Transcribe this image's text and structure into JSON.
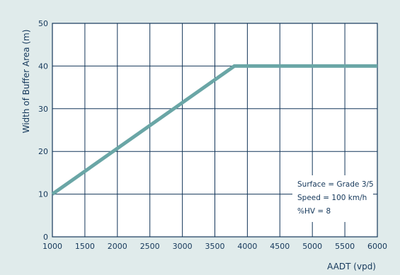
{
  "colors": {
    "background": "#e0ebeb",
    "plot_area": "#ffffff",
    "grid": "#14375a",
    "line": "#6aa6a6",
    "text": "#14375a"
  },
  "chart_data": {
    "type": "line",
    "title": "",
    "xlabel": "AADT (vpd)",
    "ylabel": "Width of Buffer Area (m)",
    "xlim": [
      1000,
      6000
    ],
    "ylim": [
      0,
      50
    ],
    "x_ticks": [
      1000,
      1500,
      2000,
      2500,
      3000,
      3500,
      4000,
      4500,
      5000,
      5500,
      6000
    ],
    "y_ticks": [
      0,
      10,
      20,
      30,
      40,
      50
    ],
    "grid": true,
    "legend": "none",
    "series": [
      {
        "x": [
          1000,
          3800,
          6000
        ],
        "y": [
          10,
          40,
          40
        ]
      }
    ],
    "annotation": {
      "position": "bottom-right",
      "lines": [
        "Surface = Grade 3/5",
        "Speed = 100 km/h",
        "%HV = 8"
      ]
    }
  }
}
